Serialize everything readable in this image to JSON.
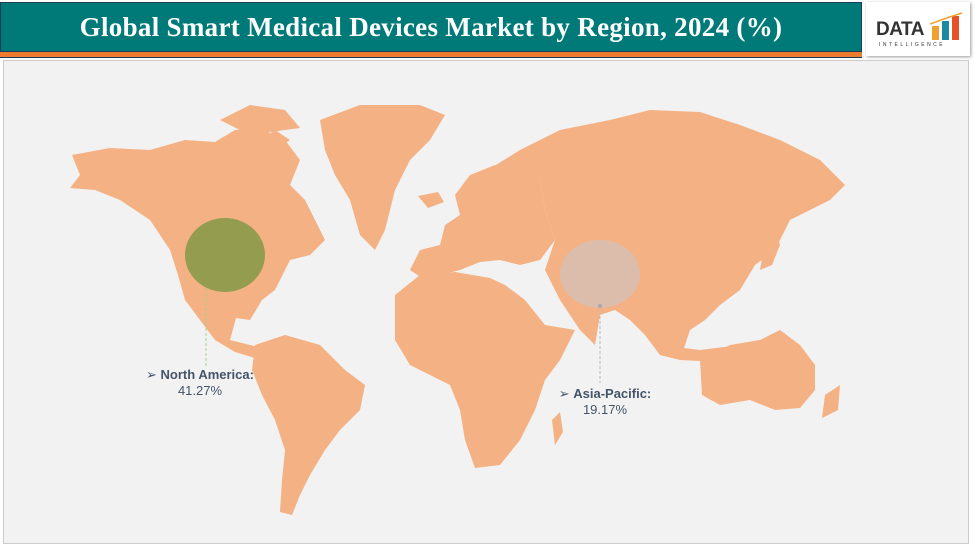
{
  "title": "Global Smart Medical Devices Market by Region, 2024 (%)",
  "logo": {
    "text": "DATA",
    "subtext": "INTELLIGENCE"
  },
  "colors": {
    "title_bg": "#007a78",
    "accent_stripe": "#ee7b30",
    "land": "#f4b183",
    "background": "#f2f2f2",
    "north_america_bubble": "#8a9a4a",
    "asia_pacific_bubble": "#d9bfb0",
    "label_text": "#44546a"
  },
  "regions": [
    {
      "name": "North America:",
      "value": "41.27%",
      "share": 41.27,
      "marker_icon": "arrow-right-icon"
    },
    {
      "name": "Asia-Pacific:",
      "value": "19.17%",
      "share": 19.17,
      "marker_icon": "arrow-right-icon"
    }
  ]
}
